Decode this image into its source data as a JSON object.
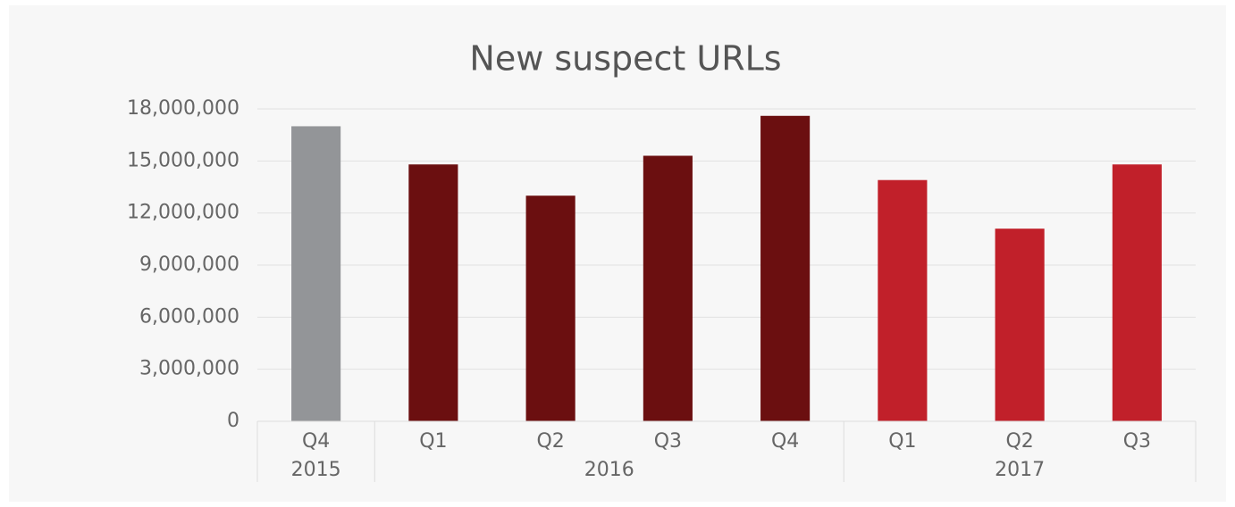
{
  "chart_data": {
    "type": "bar",
    "title": "New suspect URLs",
    "groups": [
      {
        "label": "2015",
        "color": "#939598",
        "categories": [
          "Q4"
        ],
        "values": [
          17000000
        ]
      },
      {
        "label": "2016",
        "color": "#6b0f10",
        "categories": [
          "Q1",
          "Q2",
          "Q3",
          "Q4"
        ],
        "values": [
          14800000,
          13000000,
          15300000,
          17600000
        ]
      },
      {
        "label": "2017",
        "color": "#c1202a",
        "categories": [
          "Q1",
          "Q2",
          "Q3"
        ],
        "values": [
          13900000,
          11100000,
          14800000
        ]
      }
    ],
    "ylim": [
      0,
      18000000
    ],
    "yticks": [
      0,
      {
        "value": 3000000,
        "label": "3,000,000"
      },
      {
        "value": 6000000,
        "label": "6,000,000"
      },
      {
        "value": 9000000,
        "label": "9,000,000"
      },
      {
        "value": 12000000,
        "label": "12,000,000"
      },
      {
        "value": 15000000,
        "label": "15,000,000"
      },
      {
        "value": 18000000,
        "label": "18,000,000"
      }
    ],
    "grid": true
  }
}
